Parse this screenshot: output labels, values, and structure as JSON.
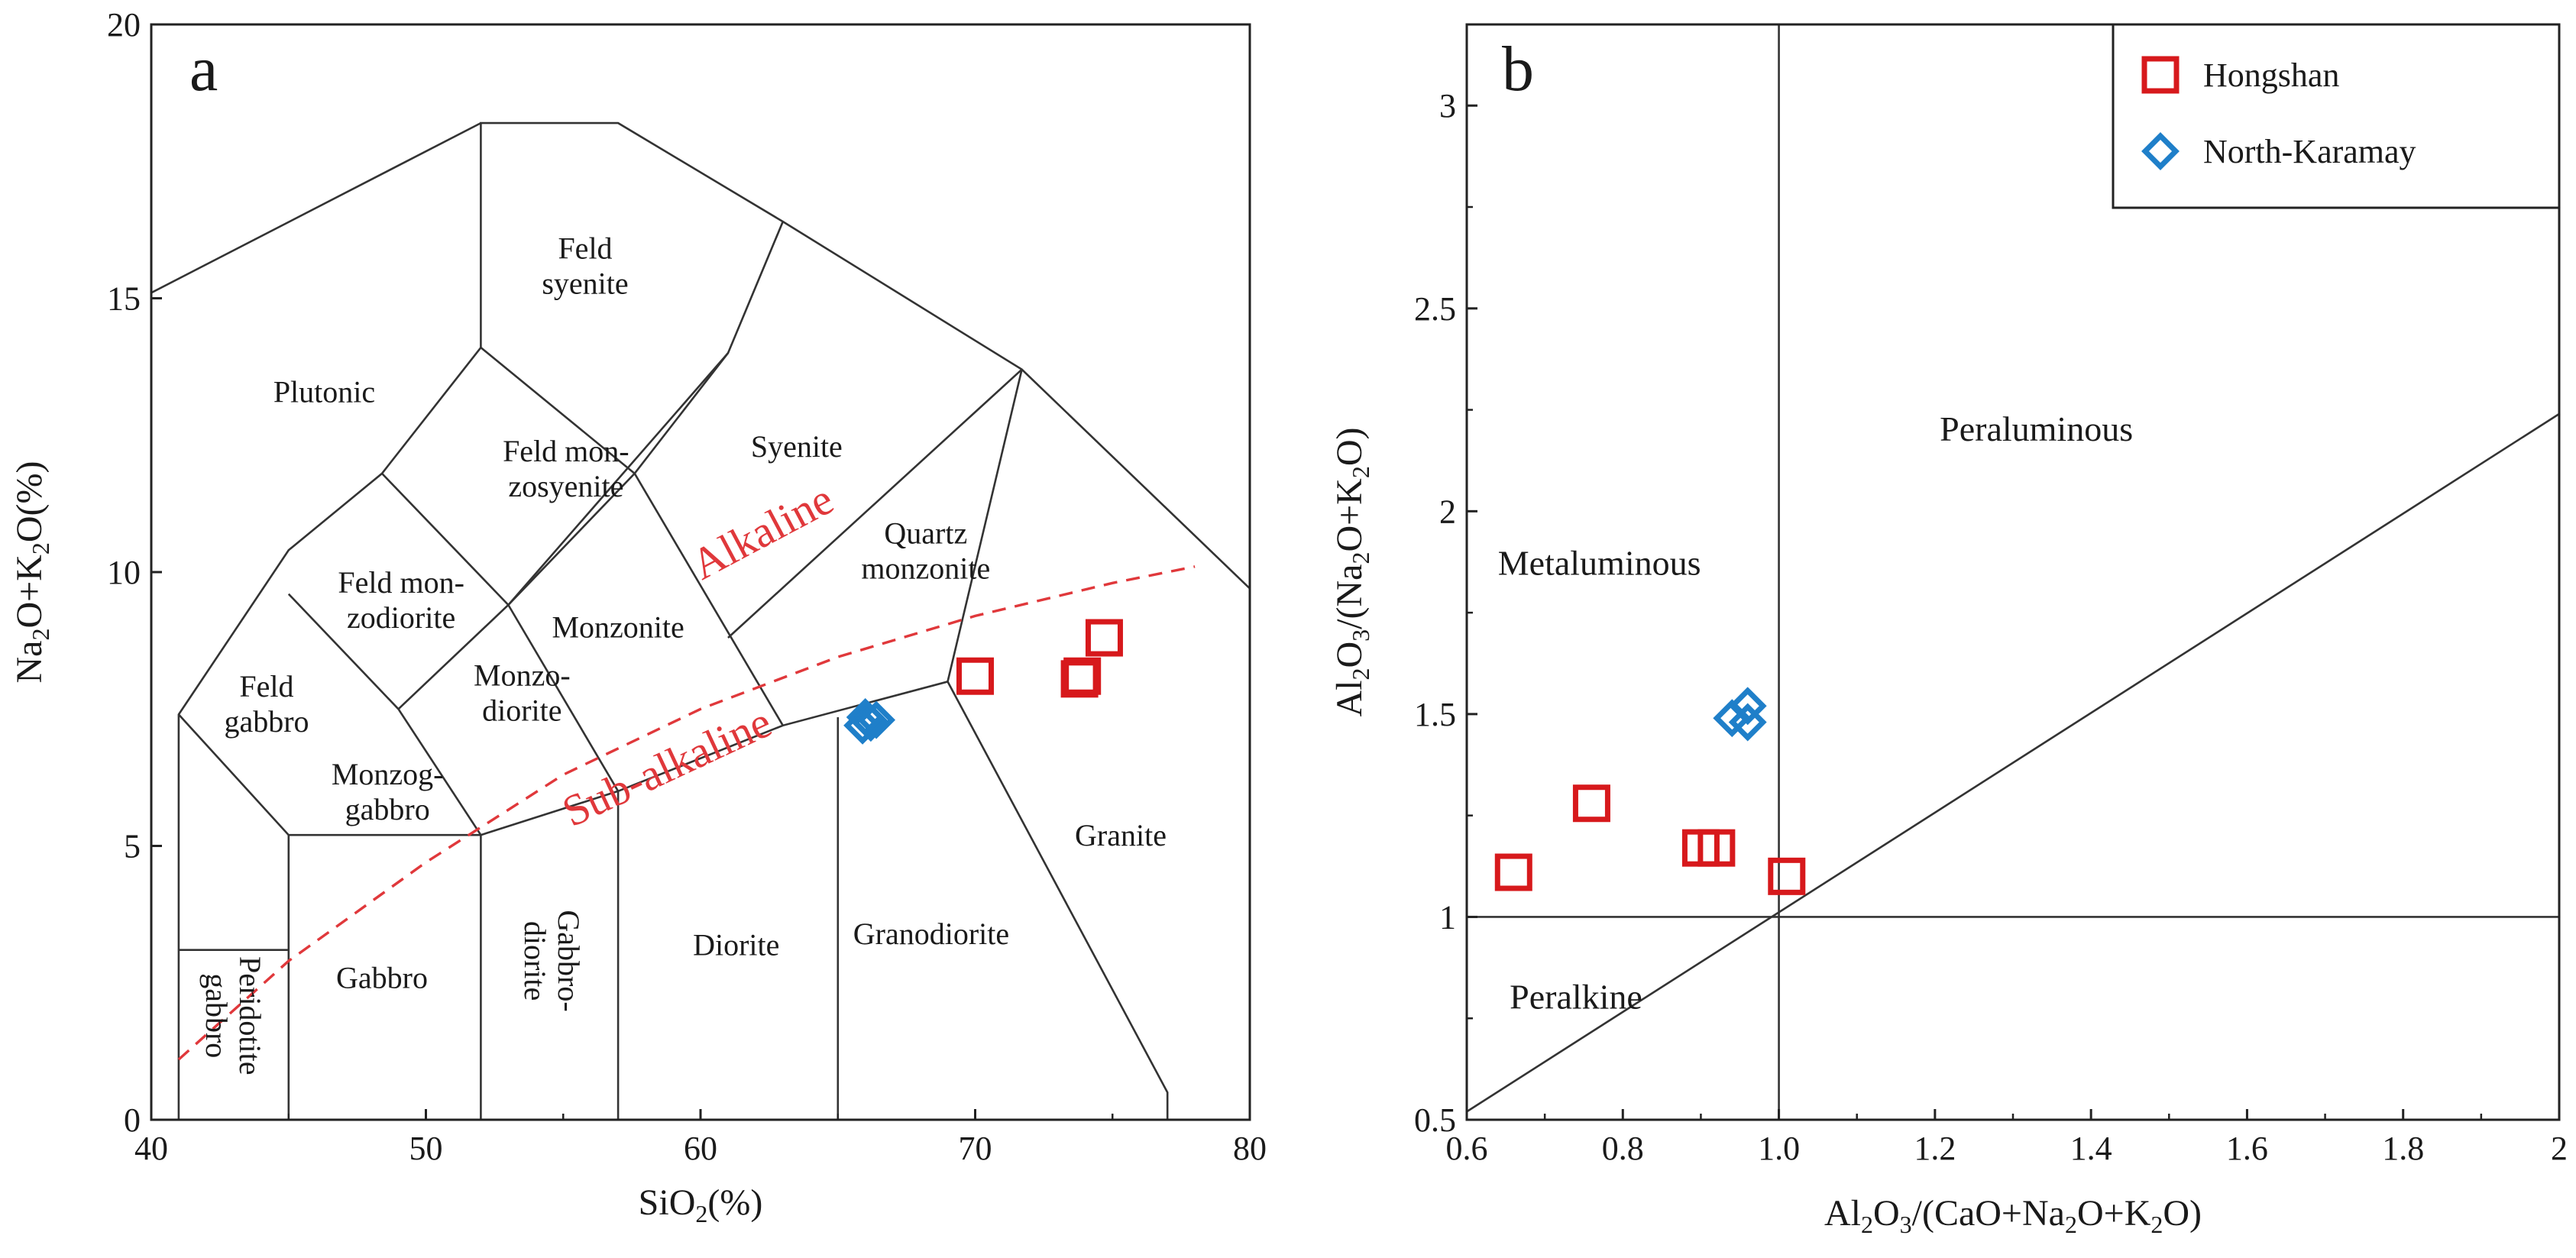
{
  "chart_data": [
    {
      "type": "scatter",
      "panel_letter": "a",
      "xlabel": "SiO2(%)",
      "ylabel": "Na2O+K2O(%)",
      "xlim": [
        40,
        80
      ],
      "ylim": [
        0,
        20
      ],
      "xticks": [
        40,
        50,
        60,
        70,
        80
      ],
      "yticks": [
        0,
        5,
        10,
        15,
        20
      ],
      "grid": false,
      "field_boundaries": [
        [
          [
            41,
            0
          ],
          [
            41,
            7.4
          ],
          [
            45,
            10.4
          ],
          [
            48.4,
            11.8
          ],
          [
            52,
            14.1
          ],
          [
            52,
            18.2
          ],
          [
            57,
            18.2
          ],
          [
            63,
            16.4
          ],
          [
            71.7,
            13.7
          ],
          [
            80,
            9.7
          ]
        ],
        [
          [
            40,
            15.1
          ],
          [
            52,
            18.2
          ]
        ],
        [
          [
            41,
            7.4
          ],
          [
            45,
            5.2
          ],
          [
            52,
            5.2
          ],
          [
            57,
            6
          ],
          [
            63,
            7.2
          ],
          [
            69,
            8
          ],
          [
            71.7,
            13.7
          ]
        ],
        [
          [
            41,
            3.1
          ],
          [
            45,
            3.1
          ]
        ],
        [
          [
            45,
            0
          ],
          [
            45,
            5.2
          ]
        ],
        [
          [
            52,
            0
          ],
          [
            52,
            5.2
          ]
        ],
        [
          [
            57,
            0
          ],
          [
            57,
            6
          ]
        ],
        [
          [
            65,
            0
          ],
          [
            65,
            7.35
          ]
        ],
        [
          [
            69,
            8
          ],
          [
            77,
            0.5
          ],
          [
            77,
            0
          ]
        ],
        [
          [
            45,
            9.6
          ],
          [
            49,
            7.5
          ],
          [
            52,
            5.2
          ]
        ],
        [
          [
            48.4,
            11.8
          ],
          [
            53,
            9.4
          ],
          [
            57,
            6
          ]
        ],
        [
          [
            49,
            7.5
          ],
          [
            53,
            9.4
          ],
          [
            57.6,
            11.8
          ],
          [
            61,
            14
          ],
          [
            63,
            16.4
          ]
        ],
        [
          [
            52,
            14.1
          ],
          [
            57.6,
            11.8
          ],
          [
            63,
            7.2
          ]
        ],
        [
          [
            53,
            9.4
          ],
          [
            61,
            14
          ]
        ],
        [
          [
            61,
            8.8
          ],
          [
            71.7,
            13.7
          ]
        ]
      ],
      "division_line": [
        [
          41,
          1.1
        ],
        [
          45,
          2.9
        ],
        [
          50,
          4.7
        ],
        [
          55,
          6.3
        ],
        [
          60,
          7.5
        ],
        [
          65,
          8.45
        ],
        [
          70,
          9.2
        ],
        [
          75,
          9.8
        ],
        [
          78,
          10.1
        ]
      ],
      "field_labels": [
        {
          "lines": [
            "Plutonic"
          ],
          "x": 46.3,
          "y": 13.3
        },
        {
          "lines": [
            "Feld",
            "syenite"
          ],
          "x": 55.8,
          "y": 15.6
        },
        {
          "lines": [
            "Syenite"
          ],
          "x": 63.5,
          "y": 12.3
        },
        {
          "lines": [
            "Feld mon-",
            "zosyenite"
          ],
          "x": 55.1,
          "y": 11.9
        },
        {
          "lines": [
            "Quartz",
            "monzonite"
          ],
          "x": 68.2,
          "y": 10.4
        },
        {
          "lines": [
            "Feld mon-",
            "zodiorite"
          ],
          "x": 49.1,
          "y": 9.5
        },
        {
          "lines": [
            "Monzonite"
          ],
          "x": 57,
          "y": 9.0
        },
        {
          "lines": [
            "Feld",
            "gabbro"
          ],
          "x": 44.2,
          "y": 7.6
        },
        {
          "lines": [
            "Monzo-",
            "diorite"
          ],
          "x": 53.5,
          "y": 7.8
        },
        {
          "lines": [
            "Monzog-",
            "gabbro"
          ],
          "x": 48.6,
          "y": 6.0
        },
        {
          "lines": [
            "Granite"
          ],
          "x": 75.3,
          "y": 5.2
        },
        {
          "lines": [
            "Diorite"
          ],
          "x": 61.3,
          "y": 3.2
        },
        {
          "lines": [
            "Granodiorite"
          ],
          "x": 68.4,
          "y": 3.4
        },
        {
          "lines": [
            "Gabbro"
          ],
          "x": 48.4,
          "y": 2.6
        }
      ],
      "vertical_labels": [
        {
          "lines": [
            "Peridotite",
            "gabbro"
          ],
          "x": 43,
          "y": 1.9
        },
        {
          "lines": [
            "Gabbro-",
            "diorite"
          ],
          "x": 54.6,
          "y": 2.9
        }
      ],
      "series_labels": [
        {
          "text": "Alkaline",
          "x": 62.5,
          "y": 10.5,
          "angle": -28
        },
        {
          "text": "Sub-alkaline",
          "x": 59,
          "y": 6.2,
          "angle": -25
        }
      ],
      "series": [
        {
          "name": "Hongshan",
          "marker": "square",
          "color": "#d7191c",
          "x": [
            70,
            73.8,
            73.9,
            74.7
          ],
          "y": [
            8.1,
            8.05,
            8.1,
            8.8
          ]
        },
        {
          "name": "North-Karamay",
          "marker": "diamond",
          "color": "#1f7fc9",
          "x": [
            65.9,
            66.1,
            66.2,
            66.4,
            66.0
          ],
          "y": [
            7.2,
            7.3,
            7.25,
            7.3,
            7.35
          ]
        }
      ]
    },
    {
      "type": "scatter",
      "panel_letter": "b",
      "xlabel": "Al2O3/(CaO+Na2O+K2O)",
      "ylabel": "Al2O3/(Na2O+K2O)",
      "xlim": [
        0.6,
        2.0
      ],
      "ylim": [
        0.5,
        3.2
      ],
      "xticks": [
        "0.6",
        "0.8",
        "1.0",
        "1.2",
        "1.4",
        "1.6",
        "1.8",
        "2"
      ],
      "yticks": [
        "0.5",
        "1",
        "1.5",
        "2",
        "2.5",
        "3"
      ],
      "grid": false,
      "reference_lines": {
        "x": 1.0,
        "y": 1.0,
        "diagonal": [
          [
            0.6,
            0.52
          ],
          [
            2.0,
            2.24
          ]
        ]
      },
      "field_labels": [
        {
          "text": "Peraluminous",
          "x": 1.33,
          "y": 2.2
        },
        {
          "text": "Metaluminous",
          "x": 0.77,
          "y": 1.87
        },
        {
          "text": "Peralkine",
          "x": 0.74,
          "y": 0.8
        }
      ],
      "legend_position": "top-right",
      "series": [
        {
          "name": "Hongshan",
          "marker": "square",
          "color": "#d7191c",
          "x": [
            0.66,
            0.76,
            0.9,
            0.92,
            1.01
          ],
          "y": [
            1.11,
            1.28,
            1.17,
            1.17,
            1.1
          ]
        },
        {
          "name": "North-Karamay",
          "marker": "diamond",
          "color": "#1f7fc9",
          "x": [
            0.94,
            0.96,
            0.96
          ],
          "y": [
            1.49,
            1.52,
            1.48
          ]
        }
      ]
    }
  ]
}
